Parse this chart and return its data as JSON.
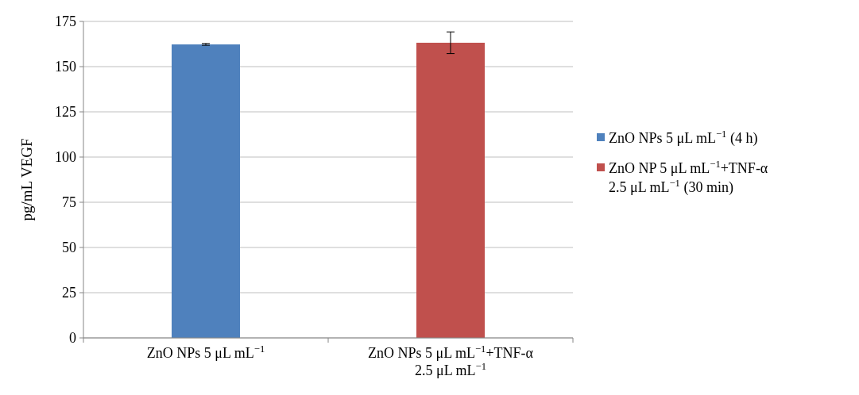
{
  "chart_data": {
    "type": "bar",
    "ylabel": "pg/mL VEGF",
    "categories": [
      "ZnO NPs 5 μL mL$^{−1}$",
      "ZnO NPs 5 μL mL$^{−1}$+TNF-α\n2.5 μL mL$^{−1}$"
    ],
    "series": [
      {
        "name": "ZnO NPs 5 μL mL$^{−1}$ (4 h)",
        "color": "#4f81bd",
        "values": [
          162.3,
          null
        ],
        "errors": [
          0.5,
          null
        ]
      },
      {
        "name": "ZnO NP 5 μL mL$^{−1}$+TNF-α\n2.5 μL mL$^{−1}$ (30 min)",
        "color": "#c0504d",
        "values": [
          null,
          163.2
        ],
        "errors": [
          null,
          6
        ]
      }
    ],
    "ylim": [
      0,
      175
    ],
    "yticks": [
      0,
      25,
      50,
      75,
      100,
      125,
      150,
      175
    ],
    "grid": "y",
    "legend": "right"
  }
}
